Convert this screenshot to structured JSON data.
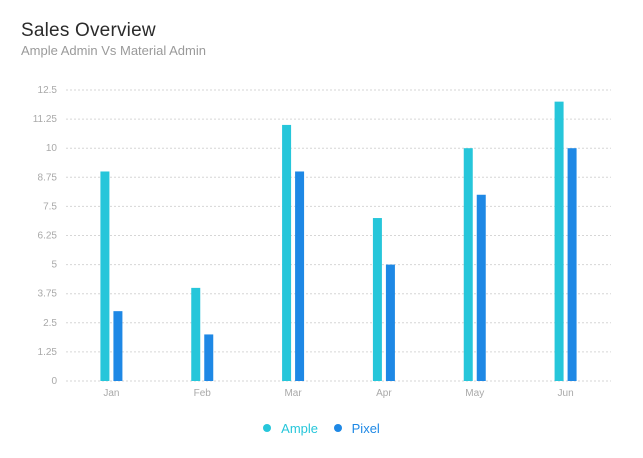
{
  "header": {
    "title": "Sales Overview",
    "subtitle": "Ample Admin Vs Material Admin"
  },
  "colors": {
    "ample": "#26c6da",
    "pixel": "#1e88e5",
    "grid": "#d6d6d6",
    "tick": "#a9a9a9"
  },
  "chart_data": {
    "type": "bar",
    "categories": [
      "Jan",
      "Feb",
      "Mar",
      "Apr",
      "May",
      "Jun"
    ],
    "series": [
      {
        "name": "Ample",
        "values": [
          9,
          4,
          11,
          7,
          10,
          12
        ]
      },
      {
        "name": "Pixel",
        "values": [
          3,
          2,
          9,
          5,
          8,
          10
        ]
      }
    ],
    "ylim": [
      0,
      12.5
    ],
    "yticks": [
      "0",
      "1.25",
      "2.5",
      "3.75",
      "5",
      "6.25",
      "7.5",
      "8.75",
      "10",
      "11.25",
      "12.5"
    ],
    "grid": true,
    "legend_position": "bottom-center"
  }
}
